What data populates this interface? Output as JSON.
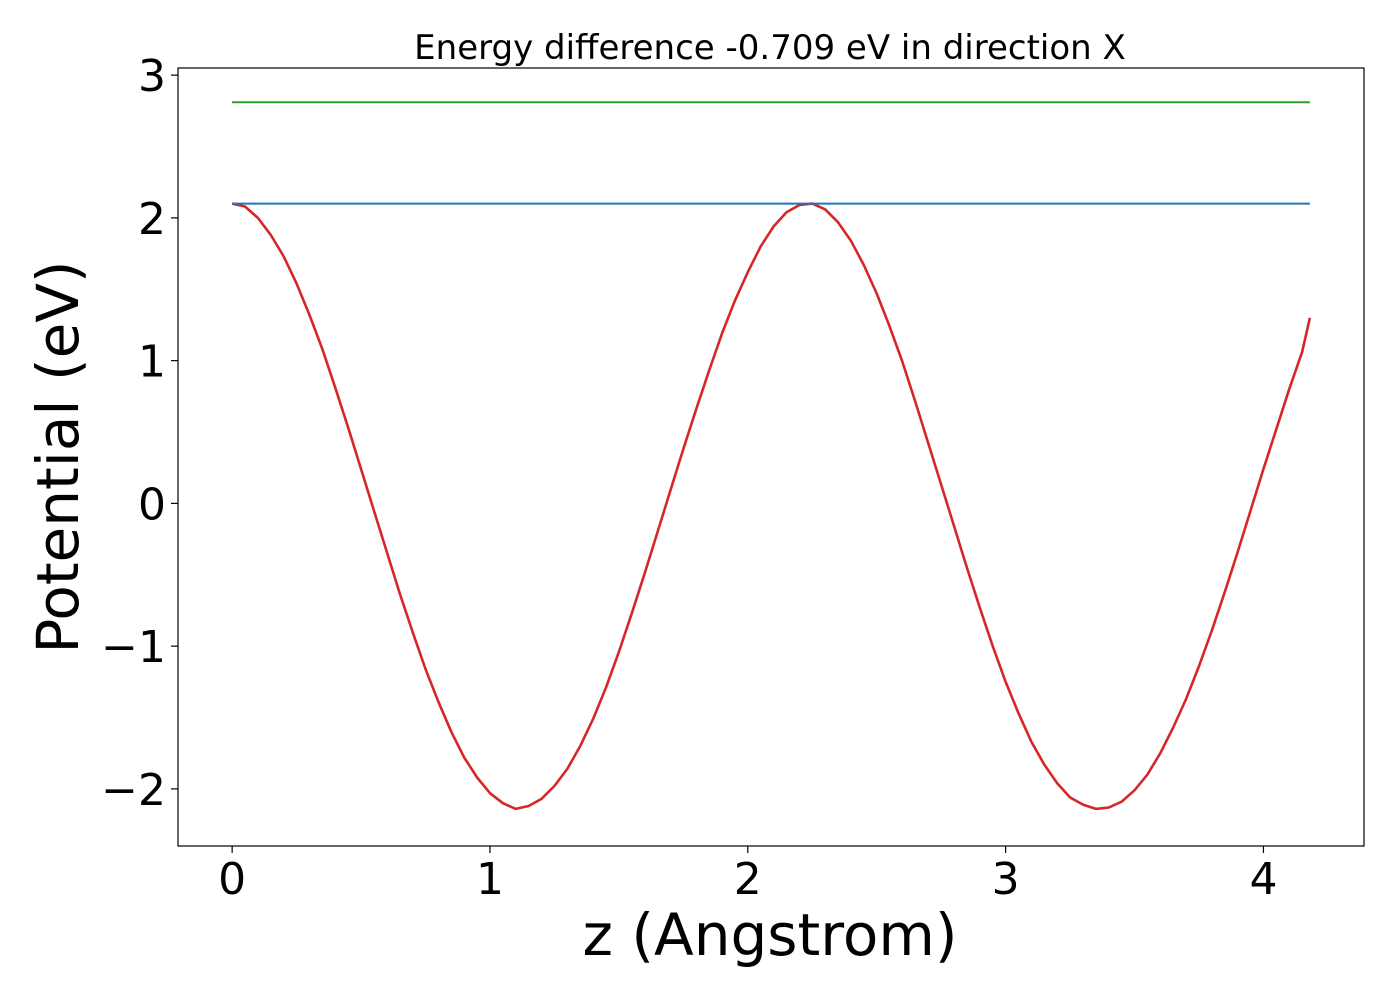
{
  "chart_data": {
    "type": "line",
    "title": "Energy difference -0.709 eV in direction X",
    "xlabel": "z (Angstrom)",
    "ylabel": "Potential (eV)",
    "xlim": [
      -0.21,
      4.39
    ],
    "ylim": [
      -2.4,
      3.05
    ],
    "xticks": [
      {
        "value": 0,
        "label": "0"
      },
      {
        "value": 1,
        "label": "1"
      },
      {
        "value": 2,
        "label": "2"
      },
      {
        "value": 3,
        "label": "3"
      },
      {
        "value": 4,
        "label": "4"
      }
    ],
    "yticks": [
      {
        "value": -2,
        "label": "−2"
      },
      {
        "value": -1,
        "label": "−1"
      },
      {
        "value": 0,
        "label": "0"
      },
      {
        "value": 1,
        "label": "1"
      },
      {
        "value": 2,
        "label": "2"
      },
      {
        "value": 3,
        "label": "3"
      }
    ],
    "grid": false,
    "series": [
      {
        "color": "#d62728",
        "kind": "curve",
        "x": [
          0.0,
          0.05,
          0.1,
          0.15,
          0.2,
          0.25,
          0.3,
          0.35,
          0.4,
          0.45,
          0.5,
          0.55,
          0.6,
          0.65,
          0.7,
          0.75,
          0.8,
          0.85,
          0.9,
          0.95,
          1.0,
          1.05,
          1.1,
          1.15,
          1.2,
          1.25,
          1.3,
          1.35,
          1.4,
          1.45,
          1.5,
          1.55,
          1.6,
          1.65,
          1.7,
          1.75,
          1.8,
          1.85,
          1.9,
          1.95,
          2.0,
          2.05,
          2.1,
          2.15,
          2.2,
          2.25,
          2.3,
          2.35,
          2.4,
          2.45,
          2.5,
          2.55,
          2.6,
          2.65,
          2.7,
          2.75,
          2.8,
          2.85,
          2.9,
          2.95,
          3.0,
          3.05,
          3.1,
          3.15,
          3.2,
          3.25,
          3.3,
          3.35,
          3.4,
          3.45,
          3.5,
          3.55,
          3.6,
          3.65,
          3.7,
          3.75,
          3.8,
          3.85,
          3.9,
          3.95,
          4.0,
          4.05,
          4.1,
          4.15,
          4.18
        ],
        "y": [
          2.1,
          2.08,
          2.0,
          1.88,
          1.73,
          1.54,
          1.32,
          1.08,
          0.81,
          0.53,
          0.24,
          -0.05,
          -0.34,
          -0.63,
          -0.9,
          -1.16,
          -1.39,
          -1.6,
          -1.78,
          -1.92,
          -2.03,
          -2.1,
          -2.14,
          -2.12,
          -2.07,
          -1.98,
          -1.86,
          -1.7,
          -1.51,
          -1.29,
          -1.04,
          -0.77,
          -0.49,
          -0.2,
          0.09,
          0.38,
          0.66,
          0.93,
          1.19,
          1.42,
          1.62,
          1.8,
          1.94,
          2.04,
          2.09,
          2.1,
          2.06,
          1.97,
          1.84,
          1.67,
          1.47,
          1.24,
          0.99,
          0.71,
          0.42,
          0.13,
          -0.16,
          -0.45,
          -0.73,
          -1.0,
          -1.25,
          -1.47,
          -1.67,
          -1.83,
          -1.96,
          -2.06,
          -2.11,
          -2.14,
          -2.13,
          -2.09,
          -2.01,
          -1.9,
          -1.75,
          -1.57,
          -1.37,
          -1.14,
          -0.89,
          -0.62,
          -0.34,
          -0.05,
          0.24,
          0.52,
          0.8,
          1.06,
          1.3
        ]
      },
      {
        "color": "#1f77b4",
        "kind": "hline",
        "x": [
          0.0,
          4.18
        ],
        "y": [
          2.1,
          2.1
        ]
      },
      {
        "color": "#2ca02c",
        "kind": "hline",
        "x": [
          0.0,
          4.18
        ],
        "y": [
          2.81,
          2.81
        ]
      }
    ]
  }
}
